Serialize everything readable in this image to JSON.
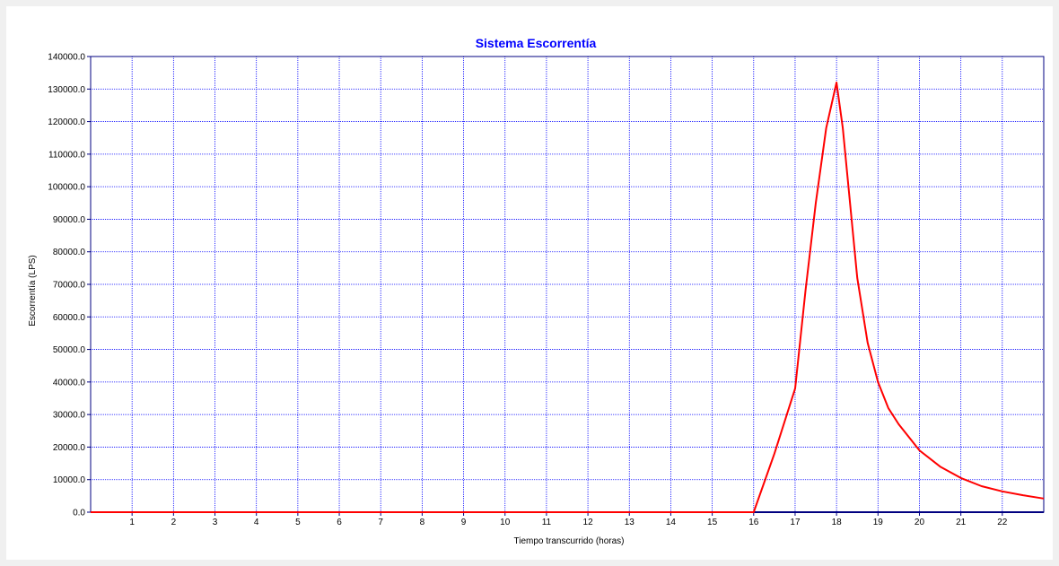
{
  "chart_data": {
    "type": "line",
    "title": "Sistema Escorrentía",
    "xlabel": "Tiempo transcurrido (horas)",
    "ylabel": "Escorrentía (LPS)",
    "xlim": [
      0,
      23
    ],
    "ylim": [
      0,
      140000
    ],
    "x_ticks": [
      "1",
      "2",
      "3",
      "4",
      "5",
      "6",
      "7",
      "8",
      "9",
      "10",
      "11",
      "12",
      "13",
      "14",
      "15",
      "16",
      "17",
      "18",
      "19",
      "20",
      "21",
      "22"
    ],
    "y_ticks": [
      "0.0",
      "10000.0",
      "20000.0",
      "30000.0",
      "40000.0",
      "50000.0",
      "60000.0",
      "70000.0",
      "80000.0",
      "90000.0",
      "100000.0",
      "110000.0",
      "120000.0",
      "130000.0",
      "140000.0"
    ],
    "grid": true,
    "legend": "none",
    "series": [
      {
        "color": "#ff0000",
        "x": [
          0,
          16.0,
          16.5,
          17.0,
          17.25,
          17.5,
          17.75,
          18.0,
          18.15,
          18.5,
          18.75,
          19.0,
          19.25,
          19.5,
          20.0,
          20.5,
          21.0,
          21.5,
          22.0,
          22.5,
          23.0
        ],
        "y": [
          0,
          0,
          18000,
          38000,
          68000,
          95000,
          118000,
          132000,
          118000,
          72000,
          52000,
          40000,
          32000,
          27000,
          19000,
          14000,
          10500,
          8000,
          6400,
          5200,
          4200
        ]
      }
    ],
    "colors": {
      "title": "#0000ff",
      "grid": "#0000ff",
      "axis": "#000080",
      "line": "#ff0000"
    }
  }
}
